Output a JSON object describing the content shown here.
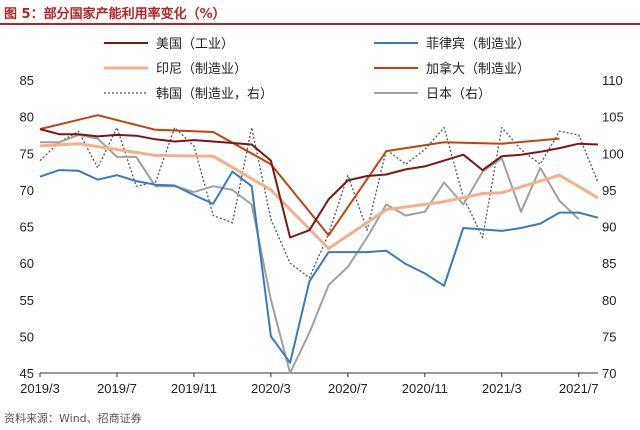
{
  "figure_title": "图 5：部分国家产能利用率变化（%）",
  "source_note": "资料来源：Wind、招商证券",
  "colors": {
    "title": "#b0262c",
    "usa": "#7b1616",
    "philippines": "#3d7ab5",
    "indonesia": "#f4b08e",
    "canada": "#c0430f",
    "korea": "#555555",
    "japan": "#a0a0a0"
  },
  "chart_data": {
    "type": "line",
    "x": [
      "2019/3",
      "2019/4",
      "2019/5",
      "2019/6",
      "2019/7",
      "2019/8",
      "2019/9",
      "2019/10",
      "2019/11",
      "2019/12",
      "2020/1",
      "2020/2",
      "2020/3",
      "2020/4",
      "2020/5",
      "2020/6",
      "2020/7",
      "2020/8",
      "2020/9",
      "2020/10",
      "2020/11",
      "2020/12",
      "2021/1",
      "2021/2",
      "2021/3",
      "2021/4",
      "2021/5",
      "2021/6",
      "2021/7",
      "2021/8"
    ],
    "x_tick_labels": [
      "2019/3",
      "2019/7",
      "2019/11",
      "2020/3",
      "2020/7",
      "2020/11",
      "2021/3",
      "2021/7"
    ],
    "y_left": {
      "min": 45,
      "max": 85,
      "ticks": [
        45,
        50,
        55,
        60,
        65,
        70,
        75,
        80,
        85
      ]
    },
    "y_right": {
      "min": 70,
      "max": 110,
      "ticks": [
        70,
        75,
        80,
        85,
        90,
        95,
        100,
        105,
        110
      ]
    },
    "series": [
      {
        "name": "美国（工业）",
        "color_key": "usa",
        "axis": "left",
        "style": "solid",
        "values": [
          78.3,
          77.6,
          77.6,
          77.3,
          77.5,
          77.4,
          76.9,
          76.6,
          76.8,
          76.6,
          76.4,
          76.2,
          74.0,
          63.5,
          64.5,
          68.7,
          71.3,
          71.9,
          72.1,
          72.8,
          73.2,
          74.0,
          74.8,
          72.7,
          74.6,
          74.8,
          75.2,
          75.7,
          76.3,
          76.2
        ]
      },
      {
        "name": "菲律宾（制造业）",
        "color_key": "philippines",
        "axis": "left",
        "style": "solid",
        "values": [
          71.8,
          72.7,
          72.6,
          71.4,
          72.0,
          71.2,
          70.7,
          70.6,
          69.3,
          68.1,
          72.5,
          70.5,
          50.0,
          46.4,
          57.5,
          61.5,
          61.5,
          61.5,
          61.7,
          59.9,
          58.6,
          56.9,
          64.8,
          64.6,
          64.4,
          64.8,
          65.4,
          66.9,
          66.9,
          66.2
        ]
      },
      {
        "name": "印尼（制造业）",
        "color_key": "indonesia",
        "axis": "left",
        "style": "solid",
        "values": [
          76.0,
          null,
          76.3,
          null,
          null,
          null,
          74.7,
          null,
          null,
          74.6,
          null,
          null,
          70.0,
          null,
          null,
          62.0,
          null,
          null,
          67.3,
          null,
          null,
          68.4,
          null,
          69.5,
          69.6,
          null,
          null,
          72.0,
          null,
          68.9
        ]
      },
      {
        "name": "加拿大（制造业）",
        "color_key": "canada",
        "axis": "left",
        "style": "solid",
        "values": [
          78.3,
          null,
          null,
          80.2,
          null,
          null,
          78.2,
          null,
          null,
          77.9,
          null,
          null,
          73.5,
          null,
          null,
          63.8,
          null,
          null,
          75.3,
          null,
          null,
          76.5,
          null,
          null,
          76.3,
          null,
          null,
          77.0,
          null,
          null
        ]
      },
      {
        "name": "韩国（制造业，右）",
        "color_key": "korea",
        "axis": "right",
        "style": "dotted",
        "values": [
          99.0,
          101.5,
          103.0,
          98.0,
          103.5,
          95.5,
          96.0,
          103.5,
          101.0,
          91.5,
          90.5,
          103.5,
          91.0,
          85.0,
          83.0,
          89.0,
          97.0,
          89.5,
          100.5,
          98.5,
          100.5,
          103.5,
          94.0,
          88.5,
          103.5,
          100.5,
          98.5,
          103.0,
          102.5,
          96.0
        ]
      },
      {
        "name": "日本（右）",
        "color_key": "japan",
        "axis": "right",
        "style": "solid",
        "values": [
          101.5,
          101.5,
          102.5,
          102.0,
          99.5,
          99.5,
          95.5,
          95.5,
          94.7,
          95.5,
          95.0,
          93.0,
          80.0,
          70.0,
          75.5,
          82.0,
          84.5,
          88.5,
          93.0,
          91.5,
          92.0,
          96.0,
          93.0,
          97.5,
          99.3,
          92.0,
          98.0,
          93.5,
          91.0,
          null
        ]
      }
    ]
  }
}
